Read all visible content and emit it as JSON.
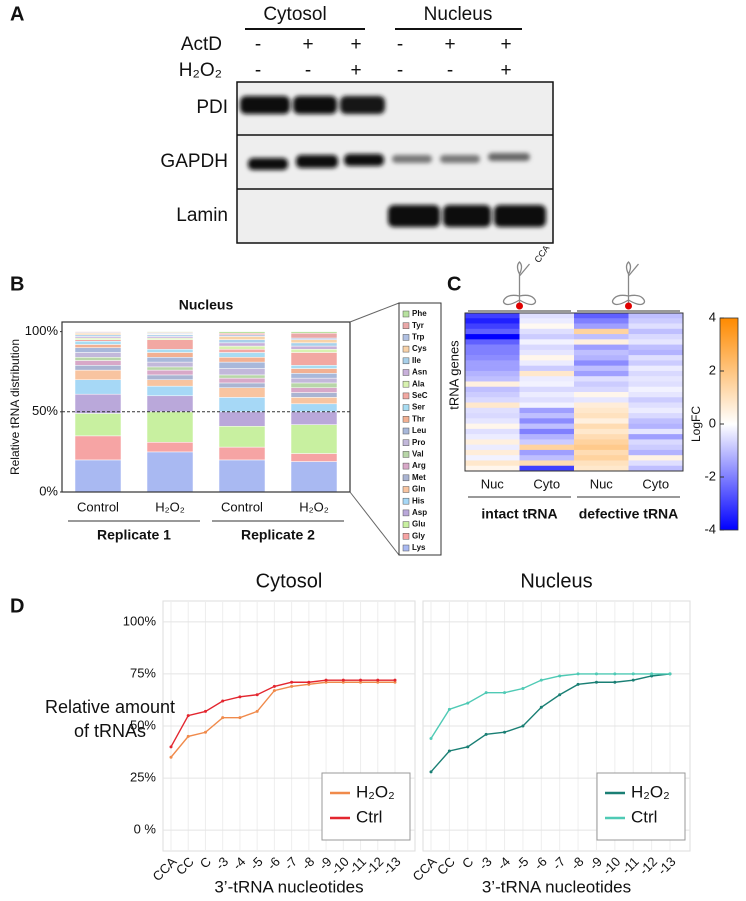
{
  "blot": {
    "label": "A",
    "headers": [
      "Cytosol",
      "Nucleus"
    ],
    "conditions": [
      {
        "name": "ActD",
        "signs": [
          "-",
          "+",
          "+",
          "-",
          "+",
          "+"
        ]
      },
      {
        "name": "H₂O₂",
        "signs": [
          "-",
          "-",
          "+",
          "-",
          "-",
          "+"
        ]
      }
    ],
    "proteins": [
      "PDI",
      "GAPDH",
      "Lamin"
    ]
  },
  "chart_data": [
    {
      "type": "stacked_bar",
      "panel_label": "B",
      "title": "Nucleus",
      "ylabel": "Relative tRNA distribution",
      "categories": [
        "Control",
        "H₂O₂",
        "Control",
        "H₂O₂"
      ],
      "groups": [
        "Replicate 1",
        "Replicate 2"
      ],
      "ylim": [
        0,
        106
      ],
      "yticks": [
        {
          "value": 0,
          "label": "0%"
        },
        {
          "value": 50,
          "label": "50%"
        },
        {
          "value": 100,
          "label": "100%"
        }
      ],
      "reference_line": 50,
      "series": [
        {
          "name": "Lys",
          "color": "#a9b9f2",
          "values": [
            20,
            25,
            20,
            19
          ]
        },
        {
          "name": "Gly",
          "color": "#f6a4a4",
          "values": [
            15,
            6,
            8,
            5
          ]
        },
        {
          "name": "Glu",
          "color": "#c8f0a0",
          "values": [
            14,
            19,
            13,
            18
          ]
        },
        {
          "name": "Asp",
          "color": "#baa8da",
          "values": [
            12,
            10,
            9,
            8
          ]
        },
        {
          "name": "His",
          "color": "#a6d8f6",
          "values": [
            9,
            6,
            9,
            5
          ]
        },
        {
          "name": "Gln",
          "color": "#f8c4a0",
          "values": [
            6,
            4,
            6,
            4
          ]
        },
        {
          "name": "Met",
          "color": "#aab4d2",
          "values": [
            3,
            3,
            3,
            3
          ]
        },
        {
          "name": "Arg",
          "color": "#d8a8c8",
          "values": [
            3,
            3,
            3,
            3
          ]
        },
        {
          "name": "Val",
          "color": "#b8d6a8",
          "values": [
            2,
            2,
            2,
            3
          ]
        },
        {
          "name": "Pro",
          "color": "#c2b8da",
          "values": [
            3,
            3,
            4,
            3
          ]
        },
        {
          "name": "Leu",
          "color": "#a8b8da",
          "values": [
            3,
            3,
            4,
            3
          ]
        },
        {
          "name": "Thr",
          "color": "#f2b092",
          "values": [
            2,
            3,
            3,
            3
          ]
        },
        {
          "name": "Ser",
          "color": "#a8dcf2",
          "values": [
            2,
            2,
            3,
            2
          ]
        },
        {
          "name": "SeC",
          "color": "#f2a8a2",
          "values": [
            1,
            6,
            2,
            8
          ]
        },
        {
          "name": "Ala",
          "color": "#d8f2b0",
          "values": [
            1,
            1,
            2,
            2
          ]
        },
        {
          "name": "Asn",
          "color": "#c8b0da",
          "values": [
            1,
            1,
            2,
            2
          ]
        },
        {
          "name": "Ile",
          "color": "#a8d0ea",
          "values": [
            1,
            1,
            2,
            2
          ]
        },
        {
          "name": "Cys",
          "color": "#f8d2a8",
          "values": [
            1,
            0.5,
            2,
            2
          ]
        },
        {
          "name": "Trp",
          "color": "#b0c0e2",
          "values": [
            0.5,
            0.5,
            1,
            1
          ]
        },
        {
          "name": "Tyr",
          "color": "#eaa8a8",
          "values": [
            0.5,
            0.5,
            1,
            3
          ]
        },
        {
          "name": "Phe",
          "color": "#b8e2a0",
          "values": [
            0,
            0.5,
            1,
            1
          ]
        }
      ]
    },
    {
      "type": "heatmap",
      "panel_label": "C",
      "ylabel": "tRNA genes",
      "icon_label": "CCA",
      "columns": [
        "Nuc",
        "Cyto",
        "Nuc",
        "Cyto"
      ],
      "groups": [
        "intact tRNA",
        "defective tRNA"
      ],
      "values": [
        [
          -3,
          -0.5,
          -2.5,
          -1
        ],
        [
          -3.5,
          -0.3,
          -2,
          -0.8
        ],
        [
          -3,
          0.2,
          -1.5,
          -0.5
        ],
        [
          -2.5,
          -0.5,
          1.5,
          -1
        ],
        [
          -4,
          -0.8,
          -1,
          -0.6
        ],
        [
          -2.5,
          -0.2,
          0.5,
          -0.4
        ],
        [
          -2,
          -0.6,
          -1.5,
          -1
        ],
        [
          -2,
          -0.4,
          -1,
          -1.2
        ],
        [
          -1.8,
          0.3,
          -1.2,
          -0.5
        ],
        [
          -1.5,
          -0.3,
          -1.8,
          -0.8
        ],
        [
          -1.5,
          -0.8,
          -1,
          -0.3
        ],
        [
          -1.2,
          0.8,
          -1.5,
          -0.6
        ],
        [
          -1,
          -0.3,
          -0.5,
          -0.4
        ],
        [
          0.5,
          -0.2,
          -0.8,
          -0.5
        ],
        [
          -1,
          -0.6,
          -0.6,
          -0.2
        ],
        [
          -0.8,
          -0.3,
          0.3,
          -0.4
        ],
        [
          -0.6,
          -0.5,
          -0.4,
          -0.8
        ],
        [
          0.8,
          -0.2,
          0.6,
          -0.5
        ],
        [
          -0.5,
          -1.5,
          0.8,
          -0.3
        ],
        [
          -0.6,
          -1,
          1,
          -0.6
        ],
        [
          -0.4,
          -1.8,
          0.5,
          -1
        ],
        [
          0.3,
          -1,
          1.2,
          -1.2
        ],
        [
          -0.5,
          -2,
          0.8,
          -0.4
        ],
        [
          -0.3,
          -1.2,
          1.2,
          -1.5
        ],
        [
          0.5,
          -0.8,
          1.5,
          -0.6
        ],
        [
          -0.3,
          1.5,
          1.8,
          -0.8
        ],
        [
          0.6,
          -1.5,
          1.2,
          -1.2
        ],
        [
          -0.2,
          -1,
          1.5,
          0.4
        ],
        [
          0.8,
          1.2,
          1,
          -0.5
        ],
        [
          0.3,
          -3,
          0.8,
          -1
        ]
      ],
      "colorbar": {
        "label": "LogFC",
        "zlim": [
          -4,
          4
        ],
        "ticks": [
          4,
          2,
          0,
          -2,
          -4
        ],
        "colors": [
          "#0000ff",
          "#ffffff",
          "#ff8a00"
        ]
      }
    },
    {
      "type": "line",
      "panel_label": "D",
      "title": "Cytosol",
      "ylabel": [
        "Relative amount",
        "of tRNAs"
      ],
      "xlabel": "3’-tRNA nucleotides",
      "categories": [
        "CCA",
        "CC",
        "C",
        "-3",
        "-4",
        "-5",
        "-6",
        "-7",
        "-8",
        "-9",
        "-10",
        "-11",
        "-12",
        "-13"
      ],
      "ylim": [
        -10,
        110
      ],
      "yticks": [
        {
          "value": 0,
          "label": "0 %"
        },
        {
          "value": 25,
          "label": "25%"
        },
        {
          "value": 50,
          "label": "50%"
        },
        {
          "value": 75,
          "label": "75%"
        },
        {
          "value": 100,
          "label": "100%"
        }
      ],
      "grid": true,
      "legend": "bottom-right",
      "series": [
        {
          "name": "H₂O₂",
          "color": "#f08a4b",
          "values": [
            35,
            45,
            47,
            54,
            54,
            57,
            67,
            69,
            70,
            71,
            71,
            71,
            71,
            71
          ]
        },
        {
          "name": "Ctrl",
          "color": "#e3262f",
          "values": [
            40,
            55,
            57,
            62,
            64,
            65,
            69,
            71,
            71,
            72,
            72,
            72,
            72,
            72
          ]
        }
      ]
    },
    {
      "type": "line",
      "title": "Nucleus",
      "xlabel": "3’-tRNA nucleotides",
      "categories": [
        "CCA",
        "CC",
        "C",
        "-3",
        "-4",
        "-5",
        "-6",
        "-7",
        "-8",
        "-9",
        "-10",
        "-11",
        "-12",
        "-13"
      ],
      "ylim": [
        -10,
        110
      ],
      "yticks": [
        0,
        25,
        50,
        75,
        100
      ],
      "grid": true,
      "legend": "bottom-right",
      "series": [
        {
          "name": "H₂O₂",
          "color": "#1a7f74",
          "values": [
            28,
            38,
            40,
            46,
            47,
            50,
            59,
            65,
            70,
            71,
            71,
            72,
            74,
            75
          ]
        },
        {
          "name": "Ctrl",
          "color": "#4fcab5",
          "values": [
            44,
            58,
            61,
            66,
            66,
            68,
            72,
            74,
            75,
            75,
            75,
            75,
            75,
            75
          ]
        }
      ]
    }
  ]
}
